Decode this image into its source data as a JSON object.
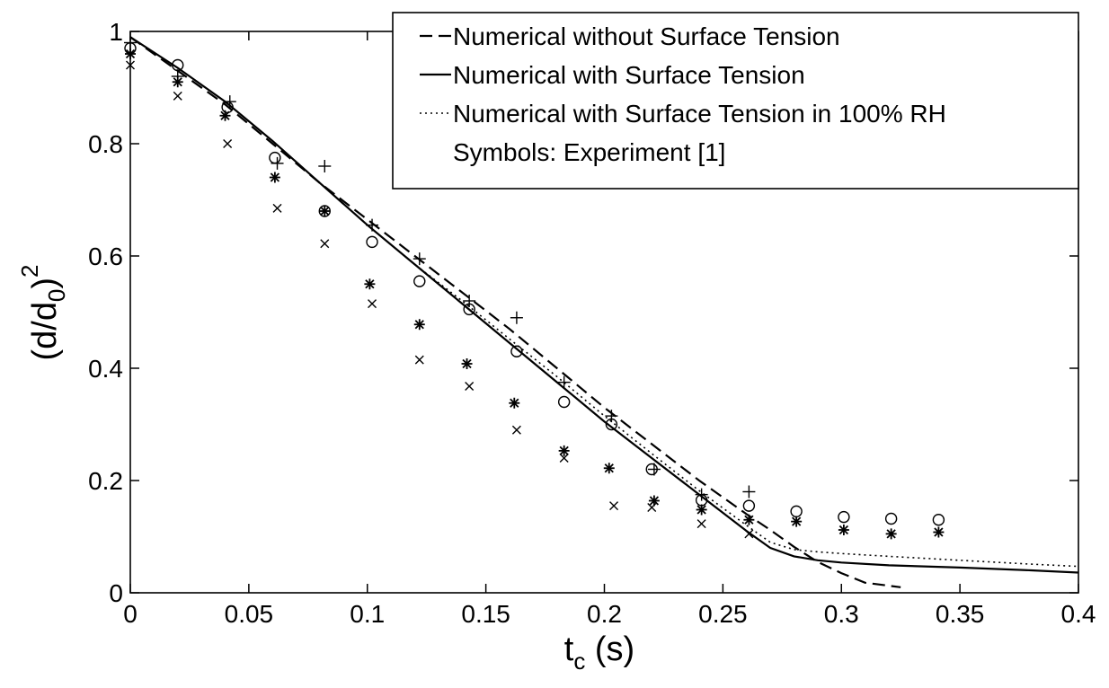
{
  "chart_data": {
    "type": "line",
    "title": "",
    "xlabel": "t",
    "xlabel_sub": "c",
    "xlabel_suffix": " (s)",
    "ylabel": "(d/d",
    "ylabel_sub": "0",
    "ylabel_suffix": ")",
    "ylabel_sup": "2",
    "xlim": [
      0,
      0.4
    ],
    "ylim": [
      0,
      1.0
    ],
    "xticks": [
      0,
      0.05,
      0.1,
      0.15,
      0.2,
      0.25,
      0.3,
      0.35,
      0.4
    ],
    "xtick_labels": [
      "0",
      "0.05",
      "0.1",
      "0.15",
      "0.2",
      "0.25",
      "0.3",
      "0.35",
      "0.4"
    ],
    "yticks": [
      0,
      0.2,
      0.4,
      0.6,
      0.8,
      1.0
    ],
    "ytick_labels": [
      "0",
      "0.2",
      "0.4",
      "0.6",
      "0.8",
      "1"
    ],
    "grid": false,
    "legend_position": "top-right",
    "series": [
      {
        "name": "Numerical without Surface Tension",
        "kind": "line",
        "style": "dashed",
        "x": [
          0,
          0.02,
          0.04,
          0.06,
          0.08,
          0.1,
          0.12,
          0.14,
          0.16,
          0.18,
          0.2,
          0.22,
          0.24,
          0.26,
          0.27,
          0.28,
          0.29,
          0.3,
          0.31,
          0.325
        ],
        "y": [
          0.99,
          0.93,
          0.87,
          0.8,
          0.73,
          0.665,
          0.6,
          0.535,
          0.47,
          0.4,
          0.33,
          0.265,
          0.2,
          0.14,
          0.112,
          0.082,
          0.055,
          0.035,
          0.018,
          0.01
        ]
      },
      {
        "name": "Numerical with Surface Tension",
        "kind": "line",
        "style": "solid",
        "x": [
          0,
          0.02,
          0.04,
          0.06,
          0.08,
          0.1,
          0.12,
          0.14,
          0.16,
          0.18,
          0.2,
          0.22,
          0.24,
          0.26,
          0.27,
          0.28,
          0.29,
          0.3,
          0.32,
          0.35,
          0.38,
          0.4
        ],
        "y": [
          0.99,
          0.935,
          0.875,
          0.805,
          0.73,
          0.655,
          0.585,
          0.515,
          0.445,
          0.375,
          0.305,
          0.24,
          0.175,
          0.11,
          0.08,
          0.065,
          0.058,
          0.054,
          0.049,
          0.045,
          0.04,
          0.036
        ]
      },
      {
        "name": "Numerical with Surface Tension in 100% RH",
        "kind": "line",
        "style": "dotted",
        "x": [
          0,
          0.02,
          0.04,
          0.06,
          0.08,
          0.1,
          0.12,
          0.14,
          0.16,
          0.18,
          0.2,
          0.22,
          0.24,
          0.26,
          0.27,
          0.28,
          0.29,
          0.3,
          0.32,
          0.35,
          0.38,
          0.4
        ],
        "y": [
          0.99,
          0.935,
          0.875,
          0.805,
          0.73,
          0.655,
          0.585,
          0.52,
          0.452,
          0.385,
          0.315,
          0.248,
          0.182,
          0.12,
          0.09,
          0.077,
          0.073,
          0.07,
          0.065,
          0.058,
          0.051,
          0.047
        ]
      },
      {
        "name": "Symbols: Experiment [1]",
        "kind": "legend-only"
      },
      {
        "kind": "scatter",
        "marker": "circle",
        "x": [
          0,
          0.02,
          0.041,
          0.061,
          0.082,
          0.102,
          0.122,
          0.143,
          0.163,
          0.183,
          0.203,
          0.22,
          0.241,
          0.261,
          0.281,
          0.301,
          0.321,
          0.341
        ],
        "y": [
          0.97,
          0.94,
          0.865,
          0.775,
          0.68,
          0.625,
          0.555,
          0.505,
          0.43,
          0.34,
          0.3,
          0.22,
          0.165,
          0.155,
          0.145,
          0.135,
          0.132,
          0.13
        ]
      },
      {
        "kind": "scatter",
        "marker": "plus",
        "x": [
          0,
          0.02,
          0.042,
          0.062,
          0.082,
          0.102,
          0.122,
          0.143,
          0.163,
          0.183,
          0.203,
          0.221,
          0.241,
          0.261
        ],
        "y": [
          0.98,
          0.92,
          0.875,
          0.765,
          0.76,
          0.655,
          0.595,
          0.52,
          0.49,
          0.375,
          0.315,
          0.22,
          0.175,
          0.18
        ]
      },
      {
        "kind": "scatter",
        "marker": "asterisk",
        "x": [
          0,
          0.02,
          0.04,
          0.061,
          0.082,
          0.101,
          0.122,
          0.142,
          0.162,
          0.183,
          0.202,
          0.221,
          0.241,
          0.261,
          0.281,
          0.301,
          0.321,
          0.341
        ],
        "y": [
          0.96,
          0.91,
          0.85,
          0.74,
          0.68,
          0.55,
          0.478,
          0.408,
          0.338,
          0.253,
          0.222,
          0.164,
          0.148,
          0.13,
          0.127,
          0.112,
          0.105,
          0.108
        ]
      },
      {
        "kind": "scatter",
        "marker": "cross",
        "x": [
          0,
          0.02,
          0.041,
          0.062,
          0.082,
          0.102,
          0.122,
          0.143,
          0.163,
          0.183,
          0.204,
          0.22,
          0.241,
          0.261
        ],
        "y": [
          0.94,
          0.885,
          0.8,
          0.685,
          0.622,
          0.515,
          0.415,
          0.368,
          0.29,
          0.24,
          0.155,
          0.152,
          0.123,
          0.105
        ]
      }
    ]
  }
}
